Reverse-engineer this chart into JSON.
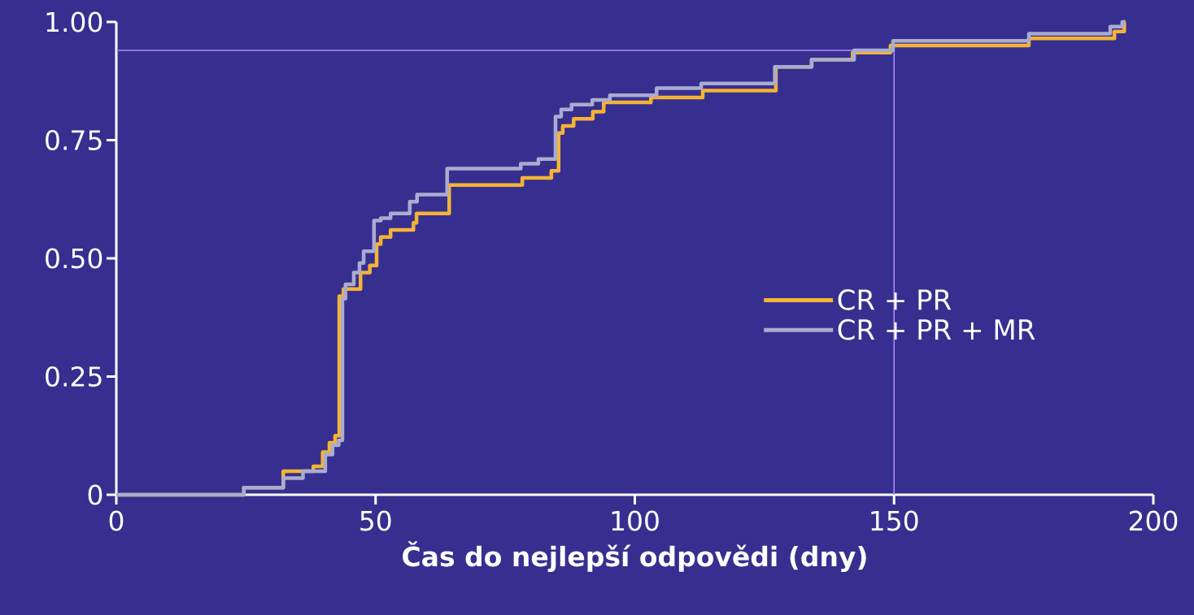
{
  "chart_data": {
    "type": "step",
    "xlabel": "Čas do nejlepší odpovědi (dny)",
    "xlim": [
      0,
      200
    ],
    "xticks": [
      0,
      50,
      100,
      150,
      200
    ],
    "ylim": [
      0,
      1
    ],
    "yticks": [
      0,
      0.25,
      {
        "value": 0.5,
        "label": "0.50"
      },
      {
        "value": 0.75,
        "label": "0.75"
      },
      {
        "value": 1,
        "label": "1.00"
      }
    ],
    "legend": "right",
    "grid": false,
    "marker": "none",
    "line_style": "solid",
    "ref_lines": [
      {
        "axis": "y",
        "value": 0.94,
        "color": "#b48cff"
      },
      {
        "axis": "x",
        "value": 150,
        "color": "#b48cff"
      }
    ],
    "series": [
      {
        "name": "CR + PR",
        "color": "#f5b335",
        "x": [
          0,
          24.6,
          32.2,
          38,
          39.8,
          41.1,
          42.2,
          43,
          43.8,
          47.1,
          48.9,
          50.2,
          51,
          52.9,
          57.3,
          57.9,
          64.2,
          78.3,
          83.9,
          85.3,
          86.1,
          88.2,
          91.9,
          94,
          103.1,
          113.1,
          127.2,
          134.1,
          142,
          149.3,
          176,
          192.5,
          194.4,
          194.6
        ],
        "values": [
          0,
          0.015,
          0.05,
          0.06,
          0.09,
          0.11,
          0.125,
          0.42,
          0.435,
          0.47,
          0.485,
          0.53,
          0.545,
          0.56,
          0.575,
          0.595,
          0.655,
          0.67,
          0.685,
          0.765,
          0.78,
          0.795,
          0.81,
          0.83,
          0.84,
          0.855,
          0.905,
          0.92,
          0.935,
          0.95,
          0.965,
          0.98,
          1.0,
          1.0
        ]
      },
      {
        "name": "CR + PR + MR",
        "color": "#a9acd0",
        "x": [
          0,
          24.6,
          32.2,
          36,
          40.3,
          41.7,
          42.9,
          43.6,
          44.2,
          45.8,
          46.9,
          47.7,
          49.7,
          51,
          52.9,
          56.6,
          58,
          63.8,
          78,
          81.4,
          84.7,
          85.8,
          87.8,
          91.8,
          95.2,
          104.2,
          112.8,
          127,
          134.1,
          142.3,
          149.8,
          176,
          191.7,
          194,
          194.6
        ],
        "values": [
          0,
          0.015,
          0.035,
          0.05,
          0.085,
          0.105,
          0.115,
          0.415,
          0.445,
          0.47,
          0.49,
          0.515,
          0.58,
          0.585,
          0.595,
          0.62,
          0.635,
          0.69,
          0.7,
          0.71,
          0.8,
          0.815,
          0.825,
          0.835,
          0.845,
          0.86,
          0.87,
          0.905,
          0.92,
          0.94,
          0.96,
          0.975,
          0.99,
          1.0,
          1.0
        ]
      }
    ]
  }
}
